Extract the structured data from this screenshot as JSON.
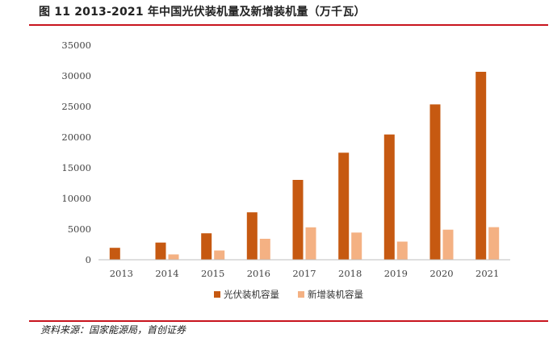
{
  "figure": {
    "title": "图 11 2013-2021 年中国光伏装机量及新增装机量（万千瓦）",
    "source": "资料来源：国家能源局，首创证券"
  },
  "colors": {
    "series1": "#c65911",
    "series2": "#f4b183",
    "accent_rule": "#c8141e",
    "axis": "#bfbfbf"
  },
  "chart_data": {
    "type": "bar",
    "title": "",
    "xlabel": "",
    "ylabel": "",
    "ylim": [
      0,
      35000
    ],
    "yticks": [
      0,
      5000,
      10000,
      15000,
      20000,
      25000,
      30000,
      35000
    ],
    "grid": false,
    "legend": "bottom",
    "categories": [
      "2013",
      "2014",
      "2015",
      "2016",
      "2017",
      "2018",
      "2019",
      "2020",
      "2021"
    ],
    "series": [
      {
        "name": "光伏装机容量",
        "values": [
          1942,
          2805,
          4318,
          7742,
          13025,
          17463,
          20430,
          25343,
          30656
        ]
      },
      {
        "name": "新增装机容量",
        "values": [
          0,
          863,
          1513,
          3424,
          5283,
          4438,
          2967,
          4913,
          5313
        ]
      }
    ]
  }
}
